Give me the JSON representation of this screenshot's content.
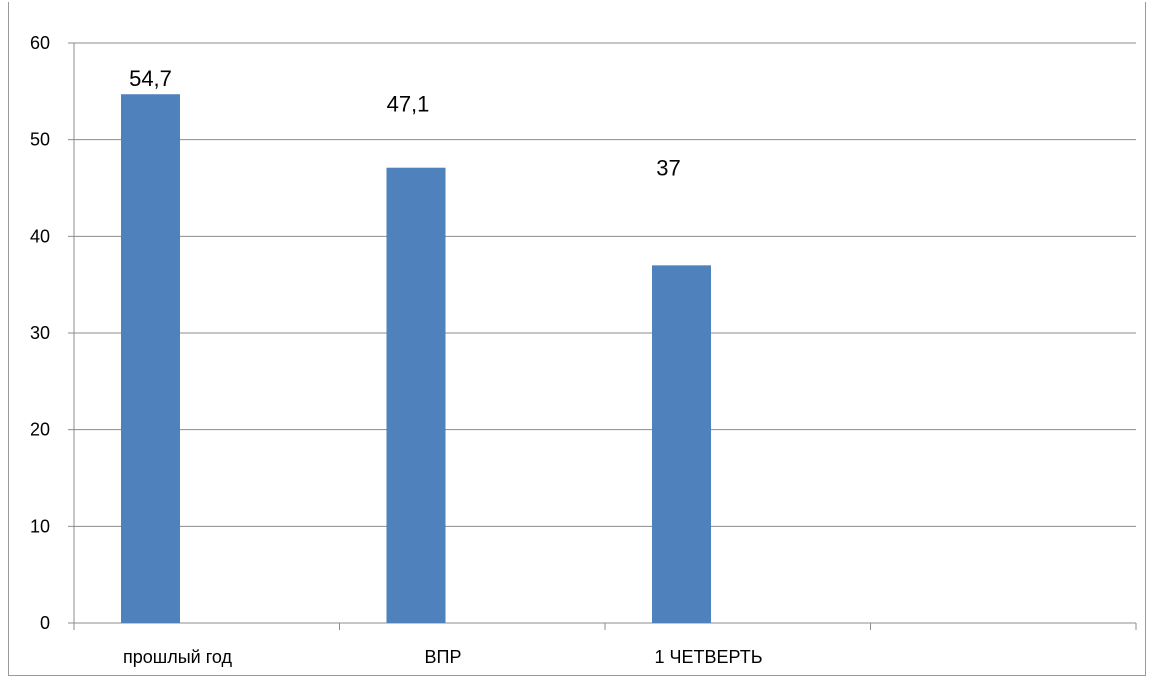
{
  "chart_data": {
    "type": "bar",
    "categories": [
      "прошлый год",
      "ВПР",
      "1 ЧЕТВЕРТЬ",
      ""
    ],
    "values": [
      54.7,
      47.1,
      37,
      null
    ],
    "data_labels": [
      "54,7",
      "47,1",
      "37",
      ""
    ],
    "ylim": [
      0,
      60
    ],
    "yticks": [
      0,
      10,
      20,
      30,
      40,
      50,
      60
    ],
    "grid": true,
    "legend": "none",
    "bar_color": "#4f81bd"
  }
}
